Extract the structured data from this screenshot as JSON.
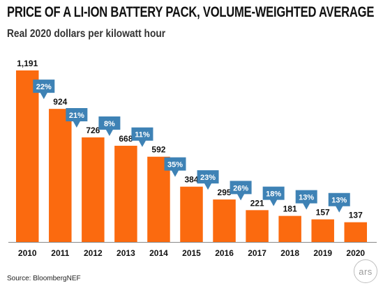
{
  "chart_data": {
    "type": "bar",
    "title": "PRICE OF A LI-ION BATTERY PACK, VOLUME-WEIGHTED AVERAGE",
    "subtitle": "Real 2020 dollars per kilowatt hour",
    "categories": [
      "2010",
      "2011",
      "2012",
      "2013",
      "2014",
      "2015",
      "2016",
      "2017",
      "2018",
      "2019",
      "2020"
    ],
    "values": [
      1191,
      924,
      726,
      668,
      592,
      384,
      295,
      221,
      181,
      157,
      137
    ],
    "value_labels": [
      "1,191",
      "924",
      "726",
      "668",
      "592",
      "384",
      "295",
      "221",
      "181",
      "157",
      "137"
    ],
    "declines": [
      "",
      "22%",
      "21%",
      "8%",
      "11%",
      "35%",
      "23%",
      "26%",
      "18%",
      "13%",
      "13%"
    ],
    "ylim": [
      0,
      1191
    ],
    "grid": false,
    "legend": "none",
    "colors": {
      "bar": "#fb6a0f",
      "arrow": "#3e82b5",
      "text": "#111111"
    }
  },
  "source": "Source: BloombergNEF",
  "logo_text": "ars"
}
